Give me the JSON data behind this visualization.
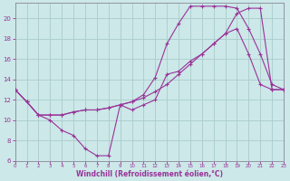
{
  "xlabel": "Windchill (Refroidissement éolien,°C)",
  "background_color": "#cce8e8",
  "grid_color": "#aacccc",
  "line_color": "#993399",
  "xlim": [
    0,
    23
  ],
  "ylim": [
    6,
    21.5
  ],
  "xticks": [
    0,
    1,
    2,
    3,
    4,
    5,
    6,
    7,
    8,
    9,
    10,
    11,
    12,
    13,
    14,
    15,
    16,
    17,
    18,
    19,
    20,
    21,
    22,
    23
  ],
  "yticks": [
    6,
    8,
    10,
    12,
    14,
    16,
    18,
    20
  ],
  "line1_x": [
    0,
    1,
    2,
    3,
    4,
    5,
    6,
    7,
    8,
    9,
    10,
    11,
    12,
    13,
    14,
    15,
    16,
    17,
    18,
    19,
    20,
    21,
    22,
    23
  ],
  "line1_y": [
    13.0,
    11.8,
    10.5,
    10.0,
    9.0,
    8.5,
    7.2,
    6.5,
    6.5,
    11.5,
    11.0,
    11.5,
    12.0,
    14.5,
    14.8,
    15.8,
    16.5,
    17.5,
    18.5,
    19.0,
    16.5,
    13.5,
    13.0,
    13.0
  ],
  "line2_x": [
    0,
    1,
    2,
    3,
    4,
    5,
    6,
    7,
    8,
    9,
    10,
    11,
    12,
    13,
    14,
    15,
    16,
    17,
    18,
    19,
    20,
    21,
    22,
    23
  ],
  "line2_y": [
    13.0,
    11.8,
    10.5,
    10.5,
    10.5,
    10.8,
    11.0,
    11.0,
    11.2,
    11.5,
    11.8,
    12.2,
    12.8,
    13.5,
    14.5,
    15.5,
    16.5,
    17.5,
    18.5,
    20.5,
    21.0,
    21.0,
    13.0,
    13.0
  ],
  "line3_x": [
    0,
    1,
    2,
    3,
    4,
    5,
    6,
    7,
    8,
    9,
    10,
    11,
    12,
    13,
    14,
    15,
    16,
    17,
    18,
    19,
    20,
    21,
    22,
    23
  ],
  "line3_y": [
    13.0,
    11.8,
    10.5,
    10.5,
    10.5,
    10.8,
    11.0,
    11.0,
    11.2,
    11.5,
    11.8,
    12.5,
    14.2,
    17.5,
    19.5,
    21.2,
    21.2,
    21.2,
    21.2,
    21.0,
    19.0,
    16.5,
    13.5,
    13.0
  ]
}
